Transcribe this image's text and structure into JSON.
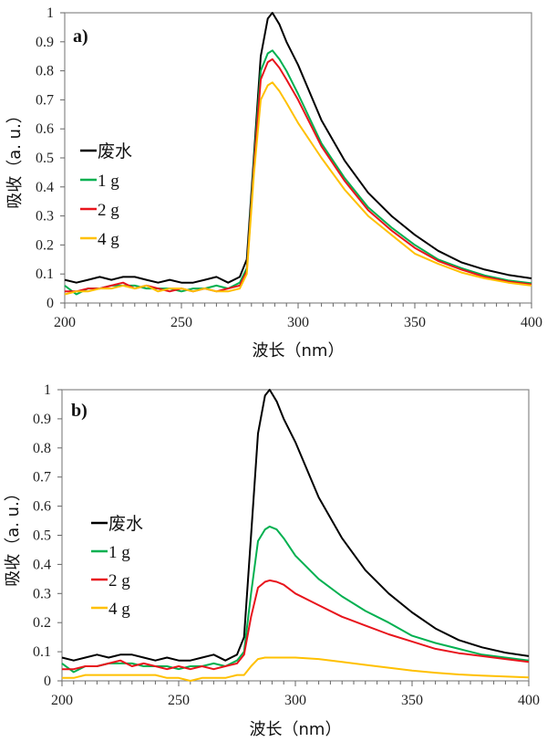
{
  "chart_data": [
    {
      "type": "line",
      "panel_label": "a)",
      "xlabel": "波长（nm）",
      "ylabel": "吸收（a. u.）",
      "xlim": [
        200,
        400
      ],
      "ylim": [
        0,
        1
      ],
      "xticks": [
        200,
        250,
        300,
        350,
        400
      ],
      "yticks": [
        0,
        0.1,
        0.2,
        0.3,
        0.4,
        0.5,
        0.6,
        0.7,
        0.8,
        0.9,
        1
      ],
      "yticklabels": [
        "0",
        "0.1",
        "0.2",
        "0.3",
        "0.4",
        "0.5",
        "0.6",
        "0.7",
        "0.8",
        "0.9",
        "1"
      ],
      "grid": false,
      "legend_placement": "left",
      "x": [
        200,
        205,
        210,
        215,
        220,
        225,
        230,
        235,
        240,
        245,
        250,
        255,
        260,
        265,
        270,
        275,
        278,
        281,
        284,
        287,
        289,
        292,
        295,
        300,
        310,
        320,
        330,
        340,
        350,
        360,
        370,
        380,
        390,
        400
      ],
      "series": [
        {
          "name": "废水",
          "color": "#000000",
          "values": [
            0.08,
            0.07,
            0.08,
            0.09,
            0.08,
            0.09,
            0.09,
            0.08,
            0.07,
            0.08,
            0.07,
            0.07,
            0.08,
            0.09,
            0.07,
            0.09,
            0.15,
            0.5,
            0.85,
            0.98,
            1.0,
            0.96,
            0.9,
            0.82,
            0.63,
            0.49,
            0.38,
            0.3,
            0.235,
            0.18,
            0.14,
            0.115,
            0.097,
            0.085
          ]
        },
        {
          "name": "1 g",
          "color": "#00b050",
          "values": [
            0.06,
            0.03,
            0.05,
            0.05,
            0.06,
            0.06,
            0.06,
            0.05,
            0.05,
            0.05,
            0.04,
            0.05,
            0.05,
            0.06,
            0.05,
            0.07,
            0.12,
            0.48,
            0.8,
            0.86,
            0.87,
            0.84,
            0.8,
            0.72,
            0.55,
            0.43,
            0.33,
            0.26,
            0.2,
            0.15,
            0.12,
            0.095,
            0.078,
            0.068
          ]
        },
        {
          "name": "2 g",
          "color": "#e8141c",
          "values": [
            0.04,
            0.04,
            0.05,
            0.05,
            0.06,
            0.07,
            0.05,
            0.06,
            0.05,
            0.04,
            0.05,
            0.04,
            0.05,
            0.04,
            0.05,
            0.06,
            0.11,
            0.46,
            0.77,
            0.83,
            0.84,
            0.81,
            0.77,
            0.7,
            0.54,
            0.42,
            0.32,
            0.25,
            0.19,
            0.145,
            0.115,
            0.09,
            0.074,
            0.064
          ]
        },
        {
          "name": "4 g",
          "color": "#ffc000",
          "values": [
            0.03,
            0.04,
            0.04,
            0.05,
            0.05,
            0.06,
            0.05,
            0.06,
            0.04,
            0.05,
            0.05,
            0.04,
            0.05,
            0.04,
            0.04,
            0.05,
            0.1,
            0.44,
            0.7,
            0.75,
            0.76,
            0.73,
            0.69,
            0.62,
            0.5,
            0.39,
            0.3,
            0.235,
            0.17,
            0.135,
            0.105,
            0.085,
            0.07,
            0.06
          ]
        }
      ]
    },
    {
      "type": "line",
      "panel_label": "b)",
      "xlabel": "波长（nm）",
      "ylabel": "吸收（a. u.）",
      "xlim": [
        200,
        400
      ],
      "ylim": [
        0,
        1
      ],
      "xticks": [
        200,
        250,
        300,
        350,
        400
      ],
      "yticks": [
        0,
        0.1,
        0.2,
        0.3,
        0.4,
        0.5,
        0.6,
        0.7,
        0.8,
        0.9,
        1
      ],
      "yticklabels": [
        "0",
        "0.1",
        "0.2",
        "0.3",
        "0.4",
        "0.5",
        "0.6",
        "0.7",
        "0.8",
        "0.9",
        "1"
      ],
      "grid": false,
      "legend_placement": "left",
      "x": [
        200,
        205,
        210,
        215,
        220,
        225,
        230,
        235,
        240,
        245,
        250,
        255,
        260,
        265,
        270,
        275,
        278,
        281,
        284,
        287,
        289,
        292,
        295,
        300,
        310,
        320,
        330,
        340,
        350,
        360,
        370,
        380,
        390,
        400
      ],
      "series": [
        {
          "name": "废水",
          "color": "#000000",
          "values": [
            0.08,
            0.07,
            0.08,
            0.09,
            0.08,
            0.09,
            0.09,
            0.08,
            0.07,
            0.08,
            0.07,
            0.07,
            0.08,
            0.09,
            0.07,
            0.09,
            0.15,
            0.5,
            0.85,
            0.98,
            1.0,
            0.96,
            0.9,
            0.82,
            0.63,
            0.49,
            0.38,
            0.3,
            0.235,
            0.18,
            0.14,
            0.115,
            0.097,
            0.085
          ]
        },
        {
          "name": "1 g",
          "color": "#00b050",
          "values": [
            0.06,
            0.03,
            0.05,
            0.05,
            0.06,
            0.06,
            0.06,
            0.05,
            0.05,
            0.05,
            0.04,
            0.05,
            0.05,
            0.06,
            0.05,
            0.07,
            0.1,
            0.3,
            0.48,
            0.52,
            0.53,
            0.52,
            0.49,
            0.43,
            0.35,
            0.29,
            0.24,
            0.2,
            0.155,
            0.13,
            0.11,
            0.09,
            0.08,
            0.07
          ]
        },
        {
          "name": "2 g",
          "color": "#e8141c",
          "values": [
            0.04,
            0.04,
            0.05,
            0.05,
            0.06,
            0.07,
            0.05,
            0.06,
            0.05,
            0.04,
            0.05,
            0.04,
            0.05,
            0.04,
            0.05,
            0.06,
            0.09,
            0.22,
            0.32,
            0.34,
            0.345,
            0.34,
            0.33,
            0.3,
            0.26,
            0.22,
            0.19,
            0.16,
            0.135,
            0.11,
            0.095,
            0.085,
            0.075,
            0.065
          ]
        },
        {
          "name": "4 g",
          "color": "#ffc000",
          "values": [
            0.01,
            0.01,
            0.02,
            0.02,
            0.02,
            0.02,
            0.02,
            0.02,
            0.02,
            0.01,
            0.01,
            0.0,
            0.01,
            0.01,
            0.01,
            0.02,
            0.02,
            0.05,
            0.075,
            0.08,
            0.08,
            0.08,
            0.08,
            0.08,
            0.075,
            0.065,
            0.055,
            0.045,
            0.035,
            0.028,
            0.022,
            0.018,
            0.015,
            0.012
          ]
        }
      ]
    }
  ]
}
